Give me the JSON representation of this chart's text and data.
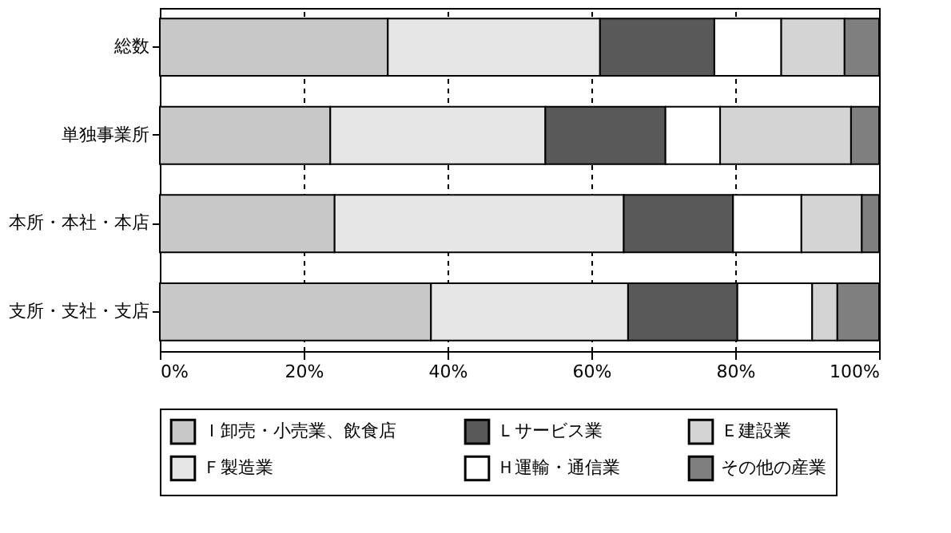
{
  "chart_data": {
    "type": "bar",
    "orientation": "horizontal",
    "stacked": true,
    "categories": [
      "総数",
      "単独事業所",
      "本所・本社・本店",
      "支所・支社・支店"
    ],
    "series": [
      {
        "name": "Ｉ卸売・小売業、飲食店",
        "color": "#c8c8c8",
        "values": [
          31.7,
          23.7,
          24.3,
          37.7
        ]
      },
      {
        "name": "Ｆ製造業",
        "color": "#e6e6e6",
        "values": [
          29.5,
          29.9,
          40.2,
          27.4
        ]
      },
      {
        "name": "Ｌサービス業",
        "color": "#595959",
        "values": [
          15.9,
          16.7,
          15.2,
          15.2
        ]
      },
      {
        "name": "Ｈ運輸・通信業",
        "color": "#ffffff",
        "values": [
          9.3,
          7.6,
          9.5,
          10.4
        ]
      },
      {
        "name": "Ｅ建設業",
        "color": "#d4d4d4",
        "values": [
          8.8,
          18.2,
          8.4,
          3.5
        ]
      },
      {
        "name": "その他の産業",
        "color": "#7f7f7f",
        "values": [
          4.8,
          3.9,
          2.4,
          5.8
        ]
      }
    ],
    "xlim": [
      0,
      100
    ],
    "xticks": [
      {
        "value": 0,
        "label": "0%"
      },
      {
        "value": 20,
        "label": "20%"
      },
      {
        "value": 40,
        "label": "40%"
      },
      {
        "value": 60,
        "label": "60%"
      },
      {
        "value": 80,
        "label": "80%"
      },
      {
        "value": 100,
        "label": "100%"
      }
    ],
    "grid": "x",
    "legend": "bottom"
  }
}
